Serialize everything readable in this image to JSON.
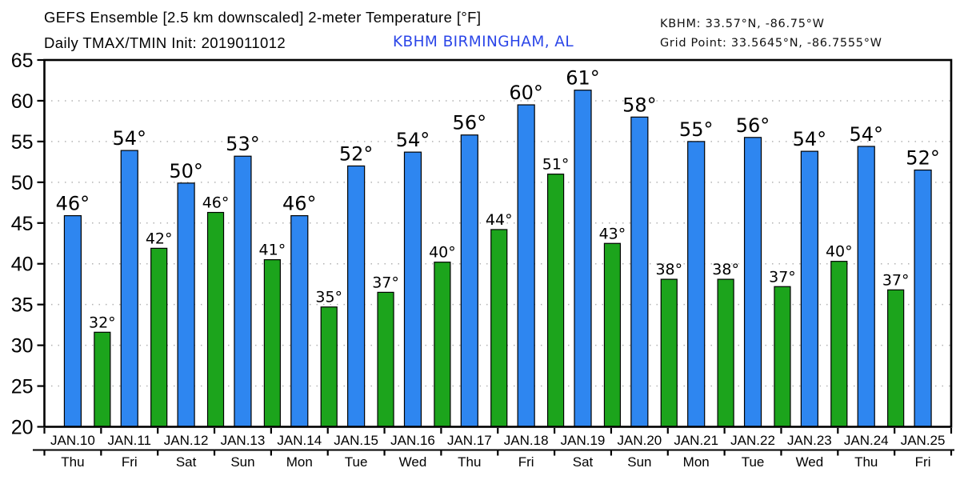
{
  "header": {
    "title": "GEFS Ensemble [2.5 km downscaled] 2-meter Temperature [°F]",
    "subtitle": "Daily TMAX/TMIN Init: 2019011012",
    "station": "KBHM BIRMINGHAM, AL",
    "station_color": "#2B46E8",
    "station_coords": "KBHM: 33.57°N, -86.75°W",
    "grid_point": "Grid Point: 33.5645°N, -86.7555°W"
  },
  "chart_data": {
    "type": "bar",
    "title": "GEFS Ensemble [2.5 km downscaled] 2-meter Temperature [°F]",
    "xlabel": "",
    "ylabel": "",
    "ylim": [
      20,
      65
    ],
    "yticks": [
      20,
      25,
      30,
      35,
      40,
      45,
      50,
      55,
      60,
      65
    ],
    "grid": "dotted-horizontal",
    "legend": "none",
    "categories": [
      "JAN.10",
      "JAN.11",
      "JAN.12",
      "JAN.13",
      "JAN.14",
      "JAN.15",
      "JAN.16",
      "JAN.17",
      "JAN.18",
      "JAN.19",
      "JAN.20",
      "JAN.21",
      "JAN.22",
      "JAN.23",
      "JAN.24",
      "JAN.25"
    ],
    "weekdays": [
      "Thu",
      "Fri",
      "Sat",
      "Sun",
      "Mon",
      "Tue",
      "Wed",
      "Thu",
      "Fri",
      "Sat",
      "Sun",
      "Mon",
      "Tue",
      "Wed",
      "Thu",
      "Fri"
    ],
    "series": [
      {
        "name": "TMAX",
        "color": "#2E86F0",
        "labels": [
          "46°",
          "54°",
          "50°",
          "53°",
          "46°",
          "52°",
          "54°",
          "56°",
          "60°",
          "61°",
          "58°",
          "55°",
          "56°",
          "54°",
          "54°",
          "52°"
        ],
        "values": [
          45.9,
          53.9,
          49.9,
          53.2,
          45.9,
          52.0,
          53.7,
          55.8,
          59.5,
          61.3,
          58.0,
          55.0,
          55.5,
          53.8,
          54.4,
          51.5
        ]
      },
      {
        "name": "TMIN",
        "color": "#1CA41C",
        "position": "day-boundary",
        "labels": [
          "32°",
          "42°",
          "46°",
          "41°",
          "35°",
          "37°",
          "40°",
          "44°",
          "51°",
          "43°",
          "38°",
          "38°",
          "37°",
          "40°",
          "37°"
        ],
        "values": [
          31.6,
          41.9,
          46.3,
          40.5,
          34.7,
          36.5,
          40.2,
          44.2,
          51.0,
          42.5,
          38.1,
          38.1,
          37.2,
          40.3,
          36.8
        ]
      }
    ]
  }
}
